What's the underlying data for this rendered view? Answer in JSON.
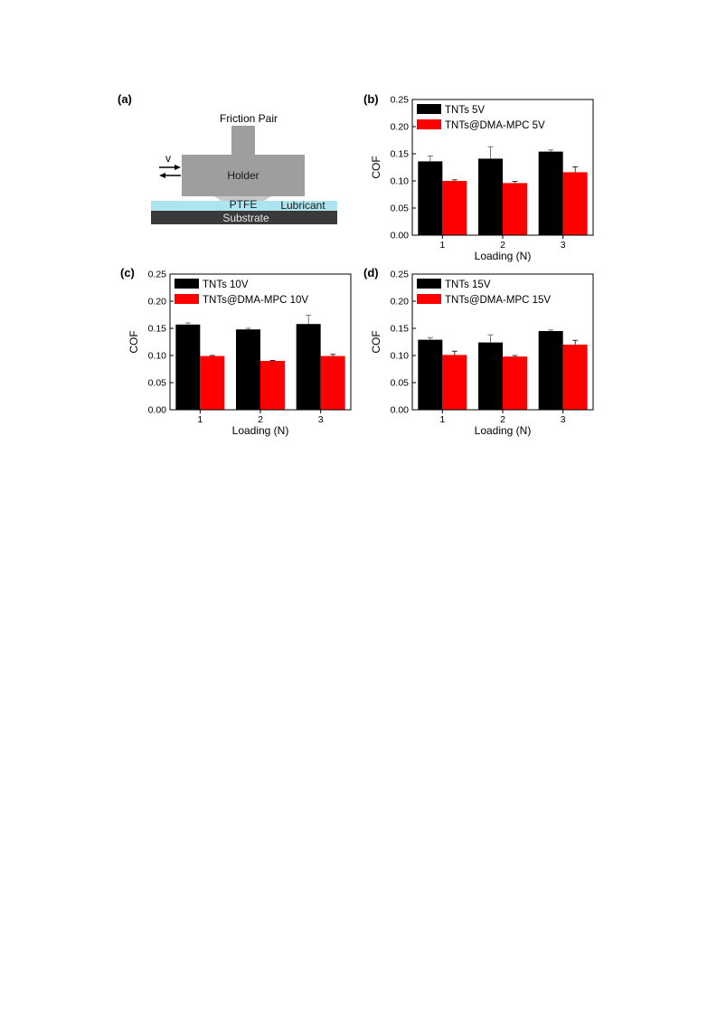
{
  "schematic": {
    "panel_label": "(a)",
    "title": "Friction Pair",
    "velocity_label": "v",
    "holder_label": "Holder",
    "ptfe_label": "PTFE",
    "lubricant_label": "Lubricant",
    "substrate_label": "Substrate",
    "colors": {
      "holder": "#9e9e9e",
      "lubricant": "#aee3f0",
      "substrate": "#3a3a3a",
      "ptfe": "#c8c8c8"
    }
  },
  "colors": {
    "series_black": "#000000",
    "series_red": "#ff0000"
  },
  "chart_data": [
    {
      "panel_label": "(b)",
      "type": "bar",
      "xlabel": "Loading (N)",
      "ylabel": "COF",
      "ylim": [
        0,
        0.25
      ],
      "yticks": [
        "0.00",
        "0.05",
        "0.10",
        "0.15",
        "0.20",
        "0.25"
      ],
      "categories": [
        "1",
        "2",
        "3"
      ],
      "series": [
        {
          "name": "TNTs 5V",
          "color": "#000000",
          "values": [
            0.136,
            0.141,
            0.154
          ],
          "errors": [
            0.01,
            0.022,
            0.003
          ]
        },
        {
          "name": "TNTs@DMA-MPC 5V",
          "color": "#ff0000",
          "values": [
            0.1,
            0.096,
            0.116
          ],
          "errors": [
            0.002,
            0.003,
            0.01
          ]
        }
      ]
    },
    {
      "panel_label": "(c)",
      "type": "bar",
      "xlabel": "Loading (N)",
      "ylabel": "COF",
      "ylim": [
        0,
        0.25
      ],
      "yticks": [
        "0.00",
        "0.05",
        "0.10",
        "0.15",
        "0.20",
        "0.25"
      ],
      "categories": [
        "1",
        "2",
        "3"
      ],
      "series": [
        {
          "name": "TNTs 10V",
          "color": "#000000",
          "values": [
            0.157,
            0.148,
            0.158
          ],
          "errors": [
            0.003,
            0.002,
            0.016
          ]
        },
        {
          "name": "TNTs@DMA-MPC 10V",
          "color": "#ff0000",
          "values": [
            0.099,
            0.09,
            0.099
          ],
          "errors": [
            0.001,
            0.001,
            0.003
          ]
        }
      ]
    },
    {
      "panel_label": "(d)",
      "type": "bar",
      "xlabel": "Loading (N)",
      "ylabel": "COF",
      "ylim": [
        0,
        0.25
      ],
      "yticks": [
        "0.00",
        "0.05",
        "0.10",
        "0.15",
        "0.20",
        "0.25"
      ],
      "categories": [
        "1",
        "2",
        "3"
      ],
      "series": [
        {
          "name": "TNTs 15V",
          "color": "#000000",
          "values": [
            0.129,
            0.124,
            0.145
          ],
          "errors": [
            0.004,
            0.014,
            0.002
          ]
        },
        {
          "name": "TNTs@DMA-MPC 15V",
          "color": "#ff0000",
          "values": [
            0.101,
            0.098,
            0.12
          ],
          "errors": [
            0.007,
            0.002,
            0.008
          ]
        }
      ]
    }
  ]
}
